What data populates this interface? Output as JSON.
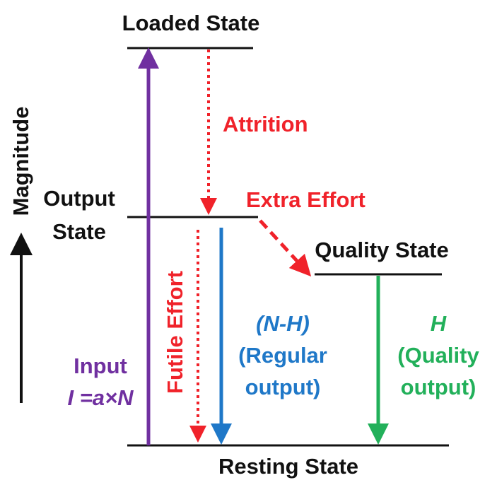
{
  "states": {
    "loaded": "Loaded State",
    "output": [
      "Output",
      "State"
    ],
    "quality": "Quality State",
    "resting": "Resting State"
  },
  "axis_label": "Magnitude",
  "transitions": {
    "attrition": "Attrition",
    "extra_effort": "Extra Effort",
    "futile_effort": "Futile Effort",
    "regular": [
      "(N-H)",
      "(Regular",
      "output)"
    ],
    "quality": [
      "H",
      "(Quality",
      "output)"
    ],
    "input": [
      "Input",
      "I =a×N"
    ]
  }
}
